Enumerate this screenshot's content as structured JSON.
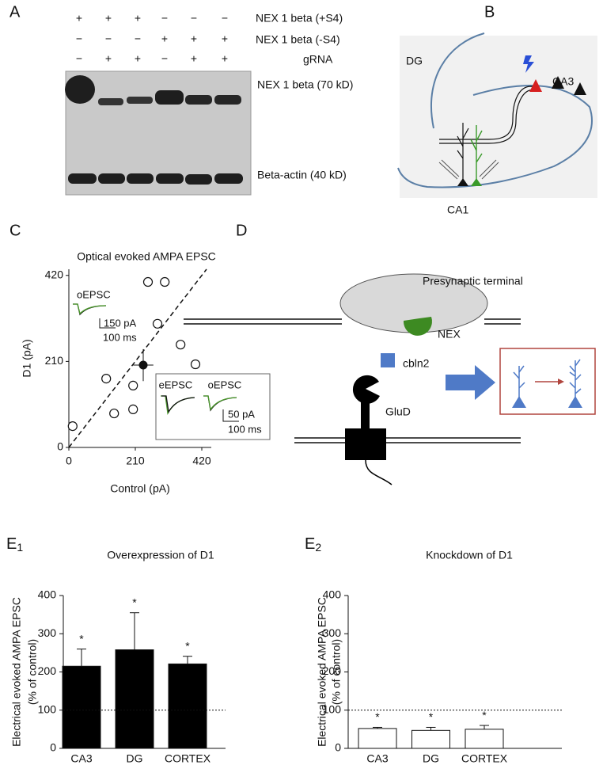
{
  "panel_labels": {
    "a": "A",
    "b": "B",
    "c": "C",
    "d": "D",
    "e1": {
      "letter": "E",
      "index": "1"
    },
    "e2": {
      "letter": "E",
      "index": "2"
    }
  },
  "blot": {
    "rows": [
      {
        "label": "NEX 1 beta (+S4)",
        "signs": [
          "+",
          "+",
          "+",
          "−",
          "−",
          "−"
        ]
      },
      {
        "label": "NEX 1 beta (-S4)",
        "signs": [
          "−",
          "−",
          "−",
          "+",
          "+",
          "+"
        ]
      },
      {
        "label": "gRNA",
        "signs": [
          "−",
          "+",
          "+",
          "−",
          "+",
          "+"
        ]
      }
    ],
    "bands": [
      "NEX 1 beta (70 kD)",
      "Beta-actin (40 kD)"
    ]
  },
  "diagram_b": {
    "labels": [
      "DG",
      "CA3",
      "CA1"
    ]
  },
  "diagram_d": {
    "labels": [
      "Presynaptic terminal",
      "NEX",
      "cbln2",
      "GluD"
    ]
  },
  "chart_data": [
    {
      "type": "scatter",
      "title": "Optical evoked AMPA EPSC",
      "x_label": "Control (pA)",
      "y_label": "D1 (pA)",
      "x": [
        12,
        118,
        143,
        203,
        203,
        250,
        303,
        280,
        353,
        400
      ],
      "values": [
        52,
        168,
        83,
        93,
        151,
        404,
        404,
        302,
        251,
        203
      ],
      "mean": {
        "x": 235,
        "y": 201,
        "xerr": 32,
        "yerr": 39
      },
      "identity_line": true,
      "xlim": [
        0,
        450
      ],
      "ylim": [
        0,
        435
      ],
      "xticks": [
        0,
        210,
        420
      ],
      "yticks": [
        0,
        210,
        420
      ],
      "insets": [
        {
          "labels": [
            "oEPSC"
          ],
          "scale_y": "150 pA",
          "scale_x": "100 ms"
        },
        {
          "labels": [
            "eEPSC",
            "oEPSC"
          ],
          "scale_y": "50 pA",
          "scale_x": "100 ms"
        }
      ]
    },
    {
      "type": "bar",
      "title": "Overexpression of D1",
      "y_label": [
        "Electrical evoked AMPA EPSC",
        "(% of control)"
      ],
      "categories": [
        "CA3",
        "DG",
        "CORTEX"
      ],
      "values": [
        215,
        258,
        221
      ],
      "errors": [
        45,
        97,
        20
      ],
      "significance": [
        "*",
        "*",
        "*"
      ],
      "color": "#000000",
      "ylim": [
        0,
        400
      ],
      "yticks": [
        0,
        100,
        200,
        300,
        400
      ],
      "reference_line": 100
    },
    {
      "type": "bar",
      "title": "Knockdown of D1",
      "y_label": [
        "Electrical evoked AMPA EPSC",
        "(% of control)"
      ],
      "categories": [
        "CA3",
        "DG",
        "CORTEX"
      ],
      "values": [
        52,
        47,
        50
      ],
      "errors": [
        3,
        8,
        10
      ],
      "significance": [
        "*",
        "*",
        "*"
      ],
      "color": "#ffffff",
      "ylim": [
        0,
        400
      ],
      "yticks": [
        0,
        100,
        200,
        300,
        400
      ],
      "reference_line": 100
    }
  ]
}
